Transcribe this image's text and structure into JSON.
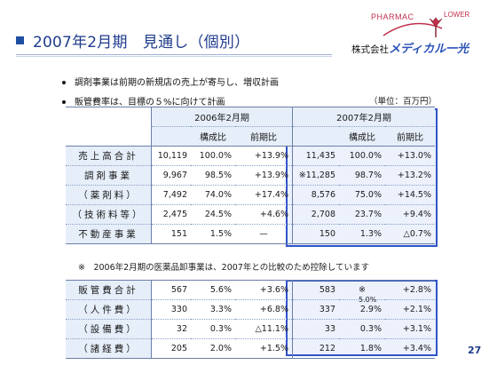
{
  "header": {
    "title": "2007年2月期　見通し（個別）",
    "logo": {
      "pharmac": "PHARMAC",
      "lower": "LOWER",
      "company_prefix": "株式会社",
      "brand": "メディカル一光"
    }
  },
  "bullets": [
    "調剤事業は前期の新規店の売上が寄与し、増収計画",
    "販管費率は、目標の５%に向けて計画"
  ],
  "unit": "（単位：百万円）",
  "table1": {
    "period_2006": "2006年2月期",
    "period_2007": "2007年2月期",
    "col_ratio": "構成比",
    "col_yoy": "前期比",
    "rows": [
      {
        "label": "売上高合計",
        "v2006": "10,119",
        "r2006": "100.0%",
        "y2006": "+13.9%",
        "v2007": "11,435",
        "r2007": "100.0%",
        "y2007": "+13.0%"
      },
      {
        "label": "調剤事業",
        "v2006": "9,967",
        "r2006": "98.5%",
        "y2006": "+13.9%",
        "v2007": "※11,285",
        "r2007": "98.7%",
        "y2007": "+13.2%"
      },
      {
        "label": "（薬剤料）",
        "v2006": "7,492",
        "r2006": "74.0%",
        "y2006": "+17.4%",
        "v2007": "8,576",
        "r2007": "75.0%",
        "y2007": "+14.5%"
      },
      {
        "label": "（技術料等）",
        "v2006": "2,475",
        "r2006": "24.5%",
        "y2006": "+4.6%",
        "v2007": "2,708",
        "r2007": "23.7%",
        "y2007": "+9.4%"
      },
      {
        "label": "不動産事業",
        "v2006": "151",
        "r2006": "1.5%",
        "y2006": "—",
        "v2007": "150",
        "r2007": "1.3%",
        "y2007": "△0.7%"
      }
    ]
  },
  "note": "※　2006年2月期の医薬品卸事業は、2007年との比較のため控除しています",
  "table2": {
    "rows": [
      {
        "label": "販管費合計",
        "v2006": "567",
        "r2006": "5.6%",
        "y2006": "+3.6%",
        "v2007": "583",
        "r2007": "※",
        "y2007": "+2.8%"
      },
      {
        "label": "（人件費）",
        "v2006": "330",
        "r2006": "3.3%",
        "y2006": "+6.8%",
        "v2007": "337",
        "r2007": "2.9%",
        "y2007": "+2.1%"
      },
      {
        "label": "（設備費）",
        "v2006": "32",
        "r2006": "0.3%",
        "y2006": "△11.1%",
        "v2007": "33",
        "r2007": "0.3%",
        "y2007": "+3.1%"
      },
      {
        "label": "（諸経費）",
        "v2006": "205",
        "r2006": "2.0%",
        "y2006": "+1.5%",
        "v2007": "212",
        "r2007": "1.8%",
        "y2007": "+3.4%"
      }
    ],
    "overlap_text": "5.0%"
  },
  "page_number": "27",
  "colors": {
    "title": "#1f3c8c",
    "highlight_border": "#2f54c8",
    "label_fill": "#e6eef9",
    "logo": "#c0304a"
  }
}
